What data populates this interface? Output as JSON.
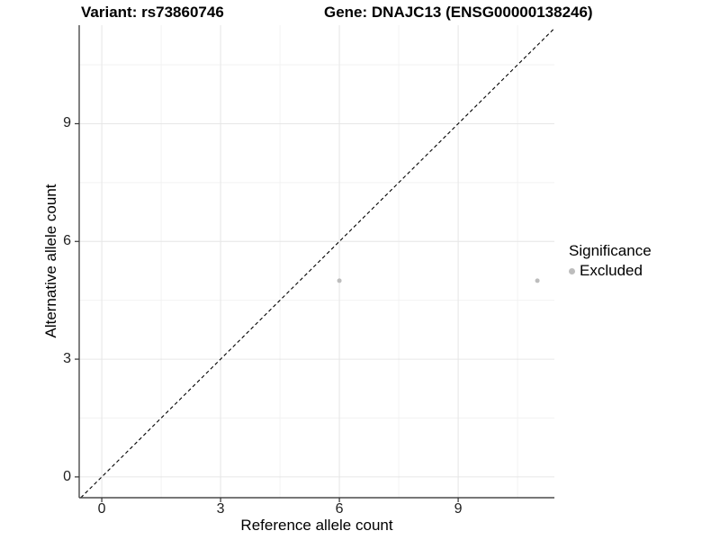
{
  "colors": {
    "background": "#ffffff",
    "grid_major": "#e6e6e6",
    "grid_minor": "#f2f2f2",
    "axis_line": "#4a4a4a",
    "tick_mark": "#333333",
    "tick_label": "#1f1f1f",
    "title_text": "#000000",
    "point": "#bdbdbd",
    "identity_line": "#000000"
  },
  "chart_data": {
    "type": "scatter",
    "titles": {
      "left": "Variant: rs73860746",
      "right": "Gene: DNAJC13 (ENSG00000138246)"
    },
    "xlabel": "Reference allele count",
    "ylabel": "Alternative allele count",
    "xlim": [
      -0.57,
      11.43
    ],
    "ylim": [
      -0.53,
      11.51
    ],
    "x_ticks": [
      0,
      3,
      6,
      9
    ],
    "y_ticks": [
      0,
      3,
      6,
      9
    ],
    "x_minor_ticks": [
      1.5,
      4.5,
      7.5,
      10.5
    ],
    "y_minor_ticks": [
      1.5,
      4.5,
      7.5,
      10.5
    ],
    "grid": true,
    "series": [
      {
        "name": "Excluded",
        "color": "#bdbdbd",
        "point_radius": 2.5,
        "points": [
          {
            "x": 6,
            "y": 5
          },
          {
            "x": 11,
            "y": 5
          }
        ]
      }
    ],
    "identity_line": {
      "slope": 1,
      "intercept": 0,
      "style": "dashed",
      "dash_pattern": "4 3",
      "color": "#000000"
    },
    "legend": {
      "title": "Significance",
      "position": "right",
      "entries": [
        {
          "label": "Excluded",
          "color": "#bdbdbd"
        }
      ]
    }
  }
}
